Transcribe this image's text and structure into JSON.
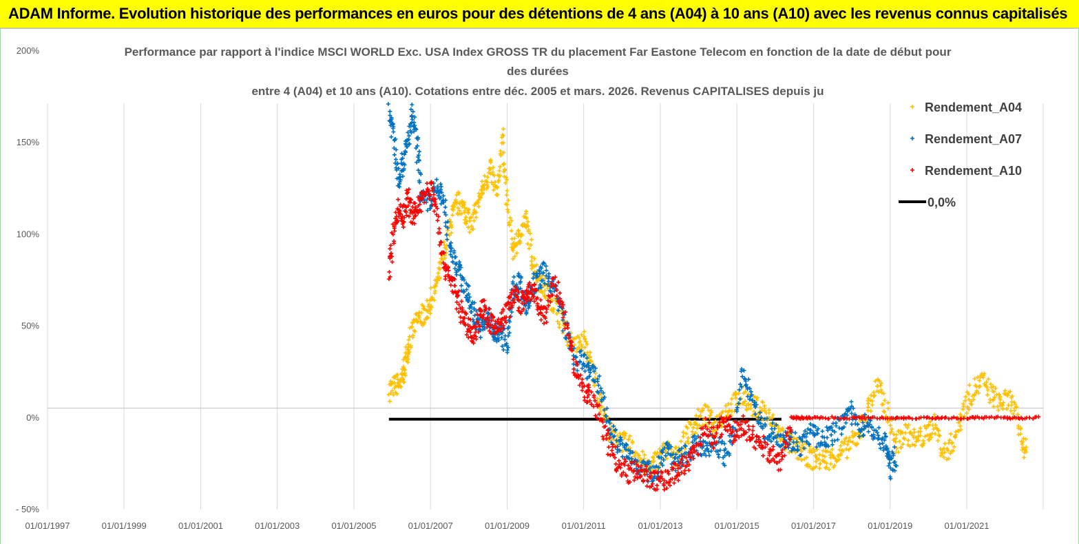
{
  "header": {
    "title": "ADAM Informe. Evolution historique des performances en euros pour des détentions de 4 ans (A04) à 10 ans (A10) avec les revenus connus capitalisés"
  },
  "chart_data": {
    "type": "scatter",
    "title_lines": [
      "Performance par rapport à l'indice MSCI WORLD Exc. USA Index GROSS TR  du placement Far Eastone Telecom  en fonction de la date de début pour",
      "des durées",
      "entre 4 (A04) et 10 ans (A10). Cotations entre déc. 2005 et mars. 2026. Revenus CAPITALISES depuis ju"
    ],
    "x_ticks": [
      "01/01/1997",
      "01/01/1999",
      "01/01/2001",
      "01/01/2003",
      "01/01/2005",
      "01/01/2007",
      "01/01/2009",
      "01/01/2011",
      "01/01/2013",
      "01/01/2015",
      "01/01/2017",
      "01/01/2019",
      "01/01/2021"
    ],
    "x_range": [
      "1997-01-01",
      "2022-12-31"
    ],
    "y_ticks": [
      "200%",
      "150%",
      "100%",
      "50%",
      "0%",
      "- 50%"
    ],
    "y_range": [
      -50,
      200
    ],
    "grid": "vertical",
    "legend": {
      "position": "top-right",
      "entries": [
        "Rendement_A04",
        "Rendement_A07",
        "Rendement_A10",
        "0,0%"
      ]
    },
    "colors": {
      "A04": "#ffc000",
      "A07": "#0070c0",
      "A10": "#ff0000",
      "zero": "#000000",
      "grid": "#d9d9d9"
    },
    "series": [
      {
        "name": "Rendement_A04",
        "key": "A04",
        "points": [
          [
            "2005-12-01",
            15
          ],
          [
            "2006-02-01",
            18
          ],
          [
            "2006-04-01",
            19
          ],
          [
            "2006-05-01",
            28
          ],
          [
            "2006-06-01",
            40
          ],
          [
            "2006-08-01",
            50
          ],
          [
            "2006-10-01",
            55
          ],
          [
            "2006-12-01",
            58
          ],
          [
            "2007-02-01",
            68
          ],
          [
            "2007-04-01",
            80
          ],
          [
            "2007-06-01",
            95
          ],
          [
            "2007-08-01",
            110
          ],
          [
            "2007-10-01",
            118
          ],
          [
            "2007-12-01",
            112
          ],
          [
            "2008-02-01",
            105
          ],
          [
            "2008-04-01",
            118
          ],
          [
            "2008-06-01",
            128
          ],
          [
            "2008-08-01",
            135
          ],
          [
            "2008-10-01",
            120
          ],
          [
            "2008-11-15",
            155
          ],
          [
            "2009-01-01",
            118
          ],
          [
            "2009-03-01",
            90
          ],
          [
            "2009-05-01",
            100
          ],
          [
            "2009-07-01",
            108
          ],
          [
            "2009-09-01",
            85
          ],
          [
            "2009-11-01",
            75
          ],
          [
            "2010-01-01",
            70
          ],
          [
            "2010-04-01",
            62
          ],
          [
            "2010-07-01",
            50
          ],
          [
            "2010-10-01",
            38
          ],
          [
            "2011-01-01",
            42
          ],
          [
            "2011-03-01",
            30
          ],
          [
            "2011-06-01",
            12
          ],
          [
            "2011-09-01",
            -8
          ],
          [
            "2011-12-01",
            -12
          ],
          [
            "2012-03-01",
            -15
          ],
          [
            "2012-06-01",
            -20
          ],
          [
            "2012-09-01",
            -28
          ],
          [
            "2012-12-01",
            -23
          ],
          [
            "2013-03-01",
            -17
          ],
          [
            "2013-06-01",
            -22
          ],
          [
            "2013-09-01",
            -10
          ],
          [
            "2013-12-01",
            -3
          ],
          [
            "2014-03-01",
            2
          ],
          [
            "2014-06-01",
            -5
          ],
          [
            "2014-09-01",
            3
          ],
          [
            "2014-12-01",
            8
          ],
          [
            "2015-03-01",
            12
          ],
          [
            "2015-06-01",
            6
          ],
          [
            "2015-09-01",
            5
          ],
          [
            "2015-12-01",
            -3
          ],
          [
            "2016-03-01",
            -10
          ],
          [
            "2016-06-01",
            -15
          ],
          [
            "2016-09-01",
            -18
          ],
          [
            "2016-12-01",
            -22
          ],
          [
            "2017-03-01",
            -23
          ],
          [
            "2017-06-01",
            -22
          ],
          [
            "2017-09-01",
            -20
          ],
          [
            "2017-12-01",
            -15
          ],
          [
            "2018-03-01",
            -10
          ],
          [
            "2018-06-01",
            5
          ],
          [
            "2018-09-01",
            18
          ],
          [
            "2018-12-01",
            5
          ],
          [
            "2019-03-01",
            -15
          ],
          [
            "2019-06-01",
            -8
          ],
          [
            "2019-09-01",
            -12
          ],
          [
            "2019-12-01",
            -10
          ],
          [
            "2020-03-01",
            -3
          ],
          [
            "2020-06-01",
            -20
          ],
          [
            "2020-09-01",
            -12
          ],
          [
            "2020-12-01",
            5
          ],
          [
            "2021-03-01",
            15
          ],
          [
            "2021-06-01",
            20
          ],
          [
            "2021-09-01",
            12
          ],
          [
            "2021-12-01",
            8
          ],
          [
            "2022-03-01",
            10
          ],
          [
            "2022-06-01",
            -10
          ],
          [
            "2022-08-01",
            -20
          ]
        ]
      },
      {
        "name": "Rendement_A07",
        "key": "A07",
        "points": [
          [
            "2005-12-01",
            168
          ],
          [
            "2006-01-15",
            155
          ],
          [
            "2006-03-01",
            130
          ],
          [
            "2006-04-15",
            140
          ],
          [
            "2006-06-01",
            150
          ],
          [
            "2006-07-15",
            165
          ],
          [
            "2006-09-01",
            145
          ],
          [
            "2006-10-15",
            118
          ],
          [
            "2007-01-01",
            118
          ],
          [
            "2007-03-01",
            125
          ],
          [
            "2007-05-01",
            120
          ],
          [
            "2007-07-01",
            95
          ],
          [
            "2007-09-01",
            85
          ],
          [
            "2007-11-01",
            75
          ],
          [
            "2008-01-01",
            65
          ],
          [
            "2008-03-01",
            55
          ],
          [
            "2008-05-01",
            48
          ],
          [
            "2008-07-01",
            55
          ],
          [
            "2008-09-01",
            45
          ],
          [
            "2008-11-01",
            48
          ],
          [
            "2009-01-01",
            38
          ],
          [
            "2009-03-01",
            70
          ],
          [
            "2009-05-01",
            75
          ],
          [
            "2009-07-01",
            60
          ],
          [
            "2009-09-01",
            72
          ],
          [
            "2009-11-01",
            75
          ],
          [
            "2010-01-01",
            80
          ],
          [
            "2010-04-01",
            70
          ],
          [
            "2010-07-01",
            52
          ],
          [
            "2010-10-01",
            32
          ],
          [
            "2011-01-01",
            30
          ],
          [
            "2011-03-01",
            25
          ],
          [
            "2011-06-01",
            18
          ],
          [
            "2011-09-01",
            -5
          ],
          [
            "2011-12-01",
            -15
          ],
          [
            "2012-03-01",
            -20
          ],
          [
            "2012-06-01",
            -25
          ],
          [
            "2012-09-01",
            -30
          ],
          [
            "2012-12-01",
            -28
          ],
          [
            "2013-03-01",
            -15
          ],
          [
            "2013-06-01",
            -25
          ],
          [
            "2013-09-01",
            -20
          ],
          [
            "2013-12-01",
            -15
          ],
          [
            "2014-03-01",
            -18
          ],
          [
            "2014-06-01",
            -12
          ],
          [
            "2014-09-01",
            -20
          ],
          [
            "2014-12-01",
            -10
          ],
          [
            "2015-03-01",
            25
          ],
          [
            "2015-06-01",
            10
          ],
          [
            "2015-09-01",
            -5
          ],
          [
            "2015-12-01",
            -8
          ],
          [
            "2016-03-01",
            -10
          ],
          [
            "2016-06-01",
            -12
          ],
          [
            "2016-09-01",
            -15
          ],
          [
            "2016-12-01",
            -8
          ],
          [
            "2017-03-01",
            -12
          ],
          [
            "2017-06-01",
            -10
          ],
          [
            "2017-09-01",
            -5
          ],
          [
            "2017-12-01",
            5
          ],
          [
            "2018-03-01",
            -5
          ],
          [
            "2018-06-01",
            -3
          ],
          [
            "2018-09-01",
            -10
          ],
          [
            "2018-12-01",
            -15
          ],
          [
            "2019-01-01",
            -28
          ],
          [
            "2019-03-01",
            -20
          ]
        ]
      },
      {
        "name": "Rendement_A10",
        "key": "A10",
        "points": [
          [
            "2005-12-01",
            80
          ],
          [
            "2006-01-15",
            100
          ],
          [
            "2006-03-01",
            115
          ],
          [
            "2006-04-15",
            108
          ],
          [
            "2006-06-01",
            120
          ],
          [
            "2006-07-15",
            110
          ],
          [
            "2006-09-01",
            115
          ],
          [
            "2006-10-15",
            120
          ],
          [
            "2007-01-01",
            125
          ],
          [
            "2007-03-01",
            115
          ],
          [
            "2007-05-01",
            85
          ],
          [
            "2007-07-01",
            78
          ],
          [
            "2007-09-01",
            68
          ],
          [
            "2007-11-01",
            55
          ],
          [
            "2008-01-01",
            50
          ],
          [
            "2008-03-01",
            45
          ],
          [
            "2008-05-01",
            60
          ],
          [
            "2008-07-01",
            55
          ],
          [
            "2008-09-01",
            48
          ],
          [
            "2008-11-01",
            52
          ],
          [
            "2009-01-01",
            58
          ],
          [
            "2009-03-01",
            68
          ],
          [
            "2009-05-01",
            62
          ],
          [
            "2009-07-01",
            65
          ],
          [
            "2009-09-01",
            70
          ],
          [
            "2009-11-01",
            60
          ],
          [
            "2010-01-01",
            55
          ],
          [
            "2010-04-01",
            75
          ],
          [
            "2010-07-01",
            55
          ],
          [
            "2010-10-01",
            30
          ],
          [
            "2011-01-01",
            15
          ],
          [
            "2011-03-01",
            12
          ],
          [
            "2011-06-01",
            2
          ],
          [
            "2011-09-01",
            -15
          ],
          [
            "2011-12-01",
            -25
          ],
          [
            "2012-03-01",
            -30
          ],
          [
            "2012-06-01",
            -28
          ],
          [
            "2012-09-01",
            -32
          ],
          [
            "2012-12-01",
            -35
          ],
          [
            "2013-03-01",
            -33
          ],
          [
            "2013-06-01",
            -30
          ],
          [
            "2013-09-01",
            -25
          ],
          [
            "2013-12-01",
            -20
          ],
          [
            "2014-03-01",
            -5
          ],
          [
            "2014-06-01",
            -12
          ],
          [
            "2014-09-01",
            0
          ],
          [
            "2014-12-01",
            -8
          ],
          [
            "2015-03-01",
            -5
          ],
          [
            "2015-06-01",
            -10
          ],
          [
            "2015-09-01",
            -15
          ],
          [
            "2015-12-01",
            -20
          ],
          [
            "2016-03-01",
            -25
          ],
          [
            "2016-06-01",
            0
          ],
          [
            "2016-09-01",
            0
          ],
          [
            "2016-12-01",
            0
          ],
          [
            "2017-06-01",
            0
          ],
          [
            "2018-01-01",
            0
          ],
          [
            "2018-06-01",
            0
          ],
          [
            "2019-01-01",
            0
          ],
          [
            "2019-06-01",
            0
          ],
          [
            "2020-01-01",
            0
          ],
          [
            "2020-06-01",
            0
          ],
          [
            "2021-01-01",
            0
          ],
          [
            "2021-06-01",
            0
          ],
          [
            "2022-01-01",
            0
          ],
          [
            "2022-06-01",
            0
          ],
          [
            "2022-12-01",
            0
          ]
        ]
      }
    ],
    "zero_line": {
      "name": "0,0%",
      "value": 0,
      "from": "2005-12-01",
      "to": "2016-03-01"
    }
  }
}
